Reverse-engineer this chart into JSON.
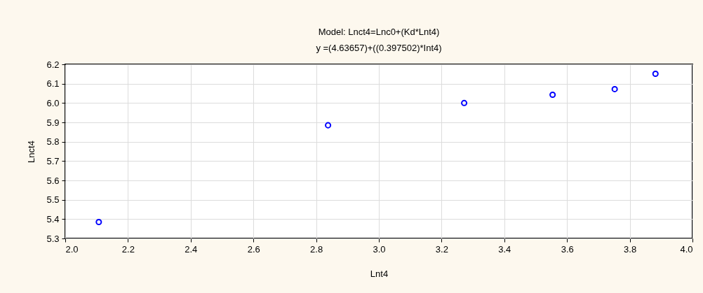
{
  "chart_data": {
    "type": "scatter",
    "title": "Model:    Lnct4=Lnc0+(Kd*Lnt4)",
    "subtitle": "y =(4.63657)+((0.397502)*Int4)",
    "xlabel": "Lnt4",
    "ylabel": "Lnct4",
    "x": [
      2.107,
      2.838,
      3.272,
      3.554,
      3.752,
      3.882
    ],
    "series": [
      {
        "color": "#0000ff",
        "values": [
          5.385,
          5.885,
          6.0,
          6.043,
          6.072,
          6.151
        ]
      }
    ],
    "xlim": [
      2.0,
      4.0
    ],
    "xticks": [
      {
        "value": 2.0,
        "label": "2.0"
      },
      {
        "value": 2.2,
        "label": "2.2"
      },
      {
        "value": 2.4,
        "label": "2.4"
      },
      {
        "value": 2.6,
        "label": "2.6"
      },
      {
        "value": 2.8,
        "label": "2.8"
      },
      {
        "value": 3.0,
        "label": "3.0"
      },
      {
        "value": 3.2,
        "label": "3.2"
      },
      {
        "value": 3.4,
        "label": "3.4"
      },
      {
        "value": 3.6,
        "label": "3.6"
      },
      {
        "value": 3.8,
        "label": "3.8"
      },
      {
        "value": 4.0,
        "label": "4.0"
      }
    ],
    "ylim": [
      5.3,
      6.2
    ],
    "yticks": [
      5.3,
      5.4,
      5.5,
      5.6,
      5.7,
      5.8,
      5.9,
      {
        "value": 6.0,
        "label": "6.0"
      },
      6.1,
      6.2
    ],
    "grid": true,
    "marker": "circle"
  }
}
